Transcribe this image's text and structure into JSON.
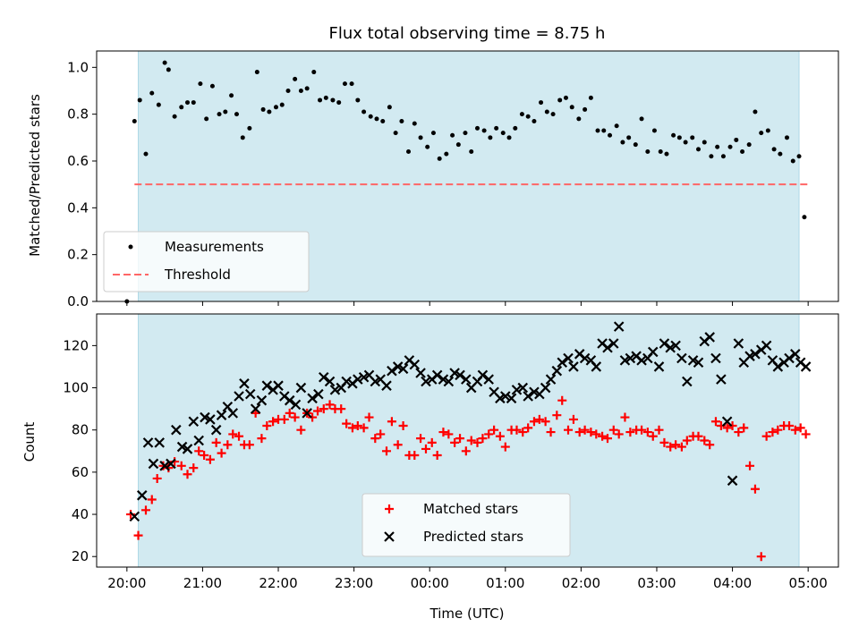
{
  "chart_data": [
    {
      "type": "scatter",
      "title": "Flux total observing time = 8.75 h",
      "xlabel": "",
      "ylabel": "Matched/Predicted stars",
      "xlim": [
        -0.4,
        9.4
      ],
      "ylim": [
        0,
        1.07
      ],
      "shaded_x_range": [
        0.15,
        8.88
      ],
      "shade_color": "#add8e6",
      "yticks": [
        0.0,
        0.2,
        0.4,
        0.6,
        0.8,
        1.0
      ],
      "ytick_labels": [
        "0.0",
        "0.2",
        "0.4",
        "0.6",
        "0.8",
        "1.0"
      ],
      "grid": false,
      "legend_position": "lower-left",
      "threshold": {
        "name": "Threshold",
        "y": 0.5,
        "x_range": [
          0.1,
          9.0
        ],
        "color": "#ff6666"
      },
      "series": [
        {
          "name": "Measurements",
          "color": "#000000",
          "x": [
            0.0,
            0.1,
            0.17,
            0.25,
            0.33,
            0.42,
            0.5,
            0.55,
            0.63,
            0.72,
            0.8,
            0.88,
            0.97,
            1.05,
            1.13,
            1.22,
            1.3,
            1.38,
            1.45,
            1.53,
            1.62,
            1.72,
            1.8,
            1.88,
            1.97,
            2.05,
            2.13,
            2.22,
            2.3,
            2.38,
            2.47,
            2.55,
            2.63,
            2.72,
            2.8,
            2.88,
            2.97,
            3.05,
            3.13,
            3.22,
            3.3,
            3.38,
            3.47,
            3.55,
            3.63,
            3.72,
            3.8,
            3.88,
            3.97,
            4.05,
            4.13,
            4.22,
            4.3,
            4.38,
            4.47,
            4.55,
            4.63,
            4.72,
            4.8,
            4.88,
            4.97,
            5.05,
            5.13,
            5.22,
            5.3,
            5.38,
            5.47,
            5.55,
            5.63,
            5.72,
            5.8,
            5.88,
            5.97,
            6.05,
            6.13,
            6.22,
            6.3,
            6.38,
            6.47,
            6.55,
            6.63,
            6.72,
            6.8,
            6.88,
            6.97,
            7.05,
            7.13,
            7.22,
            7.3,
            7.38,
            7.47,
            7.55,
            7.63,
            7.72,
            7.8,
            7.88,
            7.97,
            8.05,
            8.13,
            8.22,
            8.3,
            8.38,
            8.47,
            8.55,
            8.63,
            8.72,
            8.8,
            8.88,
            8.95
          ],
          "y": [
            0.0,
            0.77,
            0.86,
            0.63,
            0.89,
            0.84,
            1.02,
            0.99,
            0.79,
            0.83,
            0.85,
            0.85,
            0.93,
            0.78,
            0.92,
            0.8,
            0.81,
            0.88,
            0.8,
            0.7,
            0.74,
            0.98,
            0.82,
            0.81,
            0.83,
            0.84,
            0.9,
            0.95,
            0.9,
            0.91,
            0.98,
            0.86,
            0.87,
            0.86,
            0.85,
            0.93,
            0.93,
            0.86,
            0.81,
            0.79,
            0.78,
            0.77,
            0.83,
            0.72,
            0.77,
            0.64,
            0.76,
            0.7,
            0.66,
            0.72,
            0.61,
            0.63,
            0.71,
            0.67,
            0.72,
            0.64,
            0.74,
            0.73,
            0.7,
            0.74,
            0.72,
            0.7,
            0.74,
            0.8,
            0.79,
            0.77,
            0.85,
            0.81,
            0.8,
            0.86,
            0.87,
            0.83,
            0.78,
            0.82,
            0.87,
            0.73,
            0.73,
            0.71,
            0.75,
            0.68,
            0.7,
            0.67,
            0.78,
            0.64,
            0.73,
            0.64,
            0.63,
            0.71,
            0.7,
            0.68,
            0.7,
            0.65,
            0.68,
            0.62,
            0.66,
            0.62,
            0.66,
            0.69,
            0.64,
            0.67,
            0.81,
            0.72,
            0.73,
            0.65,
            0.63,
            0.7,
            0.6,
            0.62,
            0.36
          ]
        }
      ]
    },
    {
      "type": "scatter",
      "title": "",
      "xlabel": "Time (UTC)",
      "ylabel": "Count",
      "xlim": [
        -0.4,
        9.4
      ],
      "ylim": [
        15,
        135
      ],
      "shaded_x_range": [
        0.15,
        8.88
      ],
      "shade_color": "#add8e6",
      "xticks": [
        0,
        1,
        2,
        3,
        4,
        5,
        6,
        7,
        8,
        9
      ],
      "xtick_labels": [
        "20:00",
        "21:00",
        "22:00",
        "23:00",
        "00:00",
        "01:00",
        "02:00",
        "03:00",
        "04:00",
        "05:00"
      ],
      "yticks": [
        20,
        40,
        60,
        80,
        100,
        120
      ],
      "ytick_labels": [
        "20",
        "40",
        "60",
        "80",
        "100",
        "120"
      ],
      "grid": false,
      "legend_position": "lower-center",
      "series": [
        {
          "name": "Matched stars",
          "marker": "plus",
          "color": "#ff0000",
          "x": [
            0.05,
            0.15,
            0.25,
            0.33,
            0.4,
            0.48,
            0.55,
            0.63,
            0.72,
            0.8,
            0.88,
            0.95,
            1.02,
            1.1,
            1.18,
            1.25,
            1.33,
            1.4,
            1.48,
            1.55,
            1.62,
            1.7,
            1.78,
            1.85,
            1.93,
            2.0,
            2.08,
            2.15,
            2.22,
            2.3,
            2.38,
            2.45,
            2.52,
            2.6,
            2.68,
            2.75,
            2.83,
            2.9,
            2.98,
            3.05,
            3.13,
            3.2,
            3.28,
            3.35,
            3.43,
            3.5,
            3.58,
            3.65,
            3.73,
            3.8,
            3.88,
            3.95,
            4.03,
            4.1,
            4.18,
            4.25,
            4.33,
            4.4,
            4.48,
            4.55,
            4.63,
            4.7,
            4.78,
            4.85,
            4.93,
            5.0,
            5.08,
            5.15,
            5.23,
            5.3,
            5.38,
            5.45,
            5.53,
            5.6,
            5.68,
            5.75,
            5.83,
            5.9,
            5.98,
            6.05,
            6.13,
            6.2,
            6.28,
            6.35,
            6.43,
            6.5,
            6.58,
            6.65,
            6.73,
            6.8,
            6.88,
            6.95,
            7.03,
            7.1,
            7.18,
            7.25,
            7.33,
            7.4,
            7.48,
            7.55,
            7.63,
            7.7,
            7.78,
            7.85,
            7.93,
            8.0,
            8.08,
            8.15,
            8.23,
            8.3,
            8.38,
            8.45,
            8.53,
            8.6,
            8.68,
            8.75,
            8.83,
            8.9,
            8.97
          ],
          "y": [
            40,
            30,
            42,
            47,
            57,
            63,
            62,
            65,
            63,
            59,
            62,
            70,
            68,
            66,
            74,
            69,
            73,
            78,
            77,
            73,
            73,
            88,
            76,
            82,
            84,
            85,
            85,
            88,
            86,
            80,
            88,
            86,
            89,
            90,
            92,
            90,
            90,
            83,
            81,
            82,
            81,
            86,
            76,
            78,
            70,
            84,
            73,
            82,
            68,
            68,
            76,
            71,
            74,
            68,
            79,
            78,
            74,
            76,
            70,
            75,
            74,
            76,
            78,
            80,
            77,
            72,
            80,
            80,
            79,
            81,
            84,
            85,
            84,
            79,
            87,
            94,
            80,
            85,
            79,
            80,
            79,
            78,
            77,
            76,
            80,
            78,
            86,
            79,
            80,
            80,
            79,
            77,
            80,
            74,
            72,
            73,
            72,
            75,
            77,
            77,
            75,
            73,
            84,
            82,
            81,
            82,
            79,
            81,
            63,
            52,
            20,
            77,
            79,
            80,
            82,
            82,
            80,
            81,
            78
          ]
        },
        {
          "name": "Predicted stars",
          "marker": "x",
          "color": "#000000",
          "x": [
            0.1,
            0.2,
            0.28,
            0.35,
            0.43,
            0.5,
            0.58,
            0.65,
            0.73,
            0.8,
            0.88,
            0.95,
            1.03,
            1.1,
            1.18,
            1.25,
            1.33,
            1.4,
            1.48,
            1.55,
            1.63,
            1.7,
            1.78,
            1.85,
            1.93,
            2.0,
            2.08,
            2.15,
            2.23,
            2.3,
            2.38,
            2.45,
            2.53,
            2.6,
            2.68,
            2.75,
            2.83,
            2.9,
            2.98,
            3.05,
            3.13,
            3.2,
            3.28,
            3.35,
            3.43,
            3.5,
            3.58,
            3.65,
            3.73,
            3.8,
            3.88,
            3.95,
            4.03,
            4.1,
            4.18,
            4.25,
            4.33,
            4.4,
            4.48,
            4.55,
            4.63,
            4.7,
            4.78,
            4.85,
            4.93,
            5.0,
            5.08,
            5.15,
            5.23,
            5.3,
            5.38,
            5.45,
            5.53,
            5.6,
            5.68,
            5.75,
            5.83,
            5.9,
            5.98,
            6.05,
            6.13,
            6.2,
            6.28,
            6.35,
            6.43,
            6.5,
            6.58,
            6.65,
            6.73,
            6.8,
            6.88,
            6.95,
            7.03,
            7.1,
            7.18,
            7.25,
            7.33,
            7.4,
            7.48,
            7.55,
            7.63,
            7.7,
            7.78,
            7.85,
            7.93,
            8.0,
            8.08,
            8.15,
            8.23,
            8.3,
            8.38,
            8.45,
            8.53,
            8.6,
            8.68,
            8.75,
            8.83,
            8.9,
            8.97
          ],
          "y": [
            39,
            49,
            74,
            64,
            74,
            63,
            64,
            80,
            72,
            71,
            84,
            75,
            86,
            85,
            80,
            87,
            91,
            88,
            96,
            102,
            97,
            90,
            94,
            101,
            99,
            101,
            96,
            94,
            92,
            100,
            88,
            95,
            97,
            105,
            103,
            99,
            100,
            103,
            102,
            104,
            105,
            106,
            103,
            104,
            101,
            108,
            110,
            109,
            113,
            111,
            107,
            103,
            104,
            106,
            104,
            103,
            107,
            106,
            104,
            100,
            103,
            106,
            104,
            98,
            95,
            96,
            95,
            99,
            100,
            96,
            98,
            97,
            100,
            104,
            108,
            112,
            114,
            110,
            116,
            114,
            113,
            110,
            121,
            119,
            121,
            129,
            113,
            114,
            115,
            113,
            114,
            117,
            110,
            121,
            119,
            120,
            114,
            103,
            113,
            112,
            122,
            124,
            114,
            104,
            84,
            56,
            121,
            112,
            115,
            116,
            118,
            120,
            113,
            110,
            112,
            114,
            116,
            112,
            110
          ]
        }
      ]
    }
  ]
}
